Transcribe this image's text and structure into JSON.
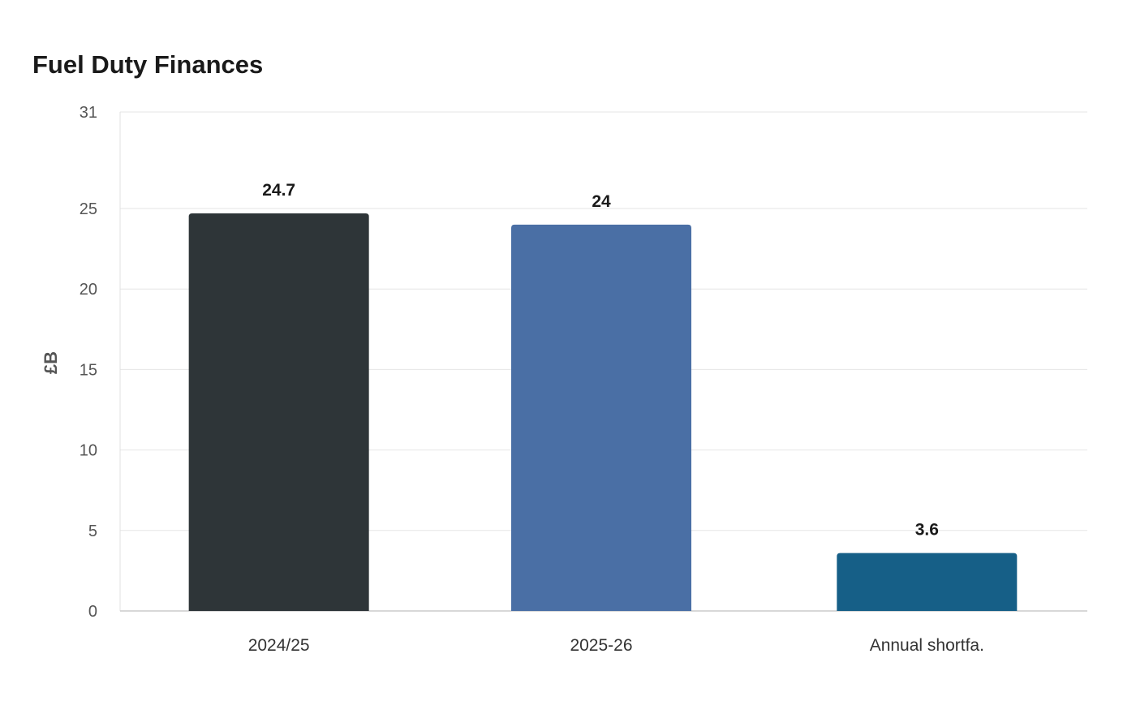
{
  "chart_data": {
    "type": "bar",
    "title": "Fuel Duty Finances",
    "xlabel": "",
    "ylabel": "£B",
    "categories": [
      "2024/25",
      "2025-26",
      "Annual shortfa."
    ],
    "values": [
      24.7,
      24,
      3.6
    ],
    "value_labels": [
      "24.7",
      "24",
      "3.6"
    ],
    "colors": [
      "#2e3538",
      "#4a6fa5",
      "#165f87"
    ],
    "ylim": [
      0,
      31
    ],
    "yticks": [
      0,
      5,
      10,
      15,
      20,
      25,
      31
    ],
    "grid": true,
    "legend": "none"
  }
}
